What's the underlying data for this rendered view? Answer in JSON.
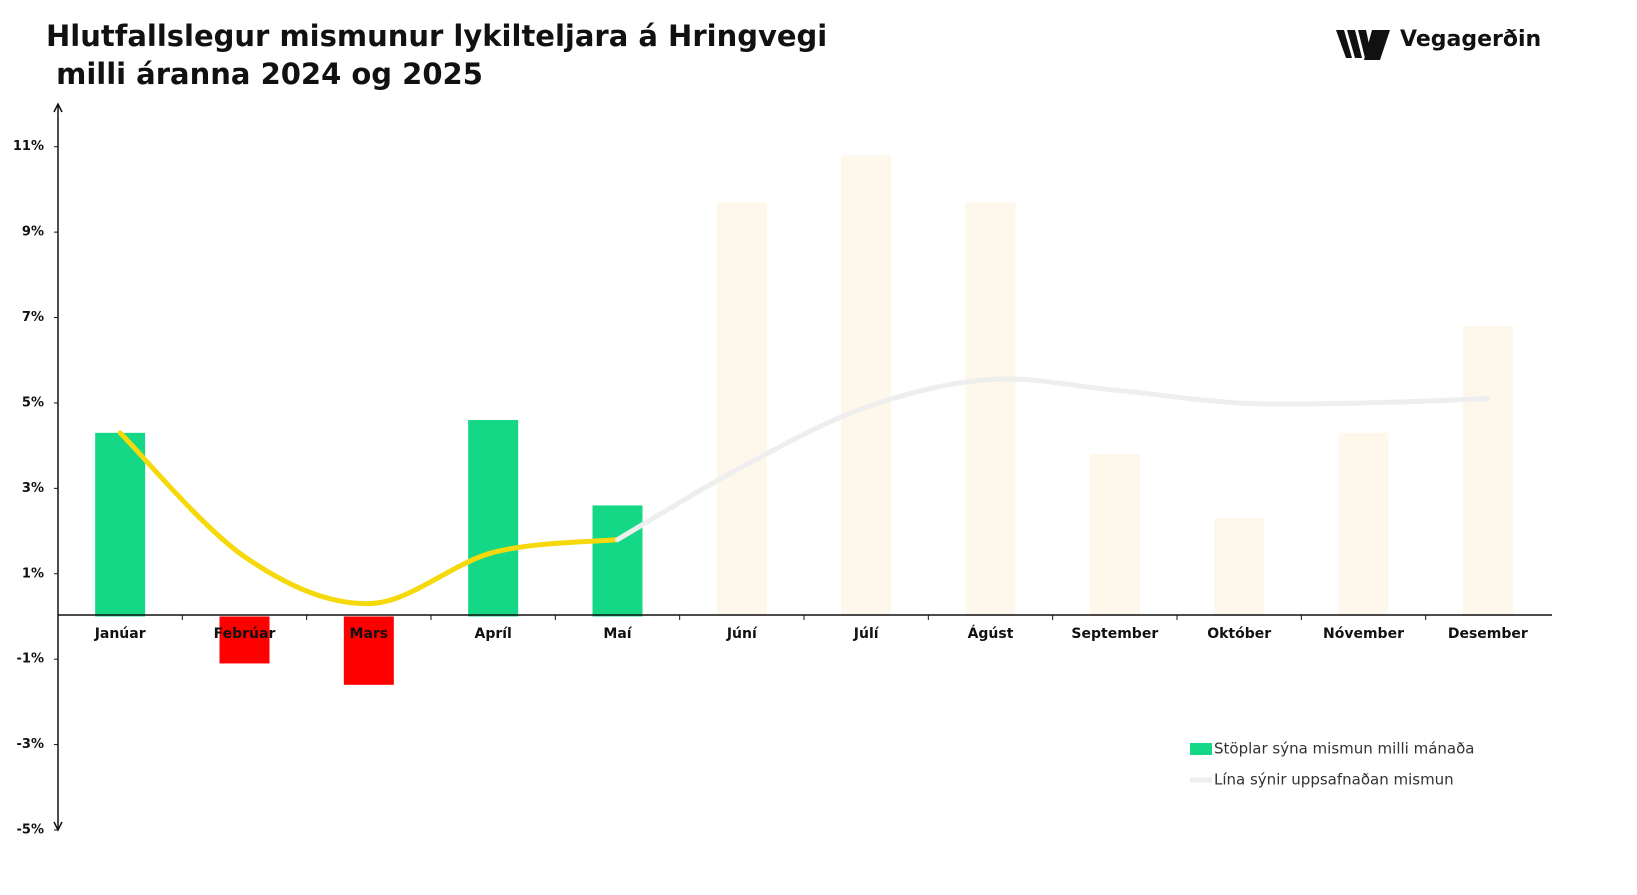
{
  "logo": "Vegagerðin",
  "chart_data": {
    "type": "bar",
    "title": [
      "Hlutfallslegur mismunur lykilteljara á Hringvegi",
      " milli áranna 2024 og 2025"
    ],
    "categories": [
      "Janúar",
      "Febrúar",
      "Mars",
      "Apríl",
      "Maí",
      "Júní",
      "Júlí",
      "Ágúst",
      "September",
      "Október",
      "Nóvember",
      "Desember"
    ],
    "series": [
      {
        "name": "Stöplar sýna mismun milli mánaða",
        "type": "bar",
        "color": "#14d886",
        "point_colors": [
          "#14d886",
          "#ff0000",
          "#ff0000",
          "#14d886",
          "#14d886",
          "#fef8ec",
          "#fef8ec",
          "#fef8ec",
          "#fef8ec",
          "#fef8ec",
          "#fef8ec",
          "#fef8ec"
        ],
        "values": [
          4.3,
          -1.1,
          -1.6,
          4.6,
          2.6,
          9.7,
          10.8,
          9.7,
          3.8,
          2.3,
          4.3,
          6.8
        ]
      },
      {
        "type": "line",
        "color": "#f5d90a",
        "values": [
          4.3,
          1.4,
          0.3,
          1.5,
          1.8,
          null,
          null,
          null,
          null,
          null,
          null,
          null
        ]
      },
      {
        "name": "Lína sýnir uppsafnaðan mismun",
        "type": "line",
        "color": "#eeeeee",
        "values": [
          null,
          null,
          null,
          null,
          1.8,
          3.5,
          4.9,
          5.55,
          5.3,
          5.0,
          5.0,
          5.1
        ]
      }
    ],
    "ylim": [
      -5,
      12
    ],
    "yticks": [
      {
        "value": -5,
        "label": "-5%"
      },
      {
        "value": -3,
        "label": "-3%"
      },
      {
        "value": -1,
        "label": "-1%"
      },
      {
        "value": 1,
        "label": "1%"
      },
      {
        "value": 3,
        "label": "3%"
      },
      {
        "value": 5,
        "label": "5%"
      },
      {
        "value": 7,
        "label": "7%"
      },
      {
        "value": 9,
        "label": "9%"
      },
      {
        "value": 11,
        "label": "11%"
      }
    ]
  }
}
